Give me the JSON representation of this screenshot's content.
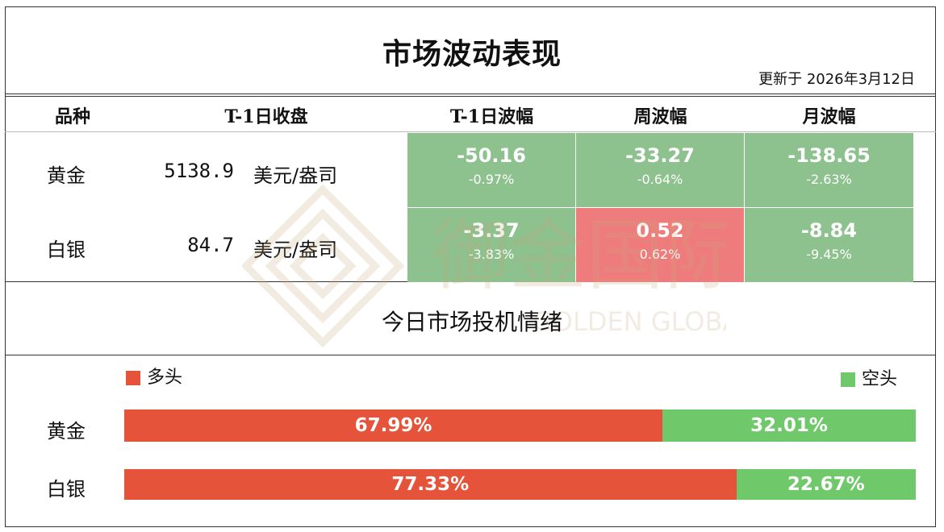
{
  "title": "市场波动表现",
  "updated": "更新于 2026年3月12日",
  "headers": {
    "variety": "品种",
    "close": "T-1日收盘",
    "day": "T-1日波幅",
    "week": "周波幅",
    "month": "月波幅"
  },
  "rows": [
    {
      "name": "黄金",
      "close": "5138.9",
      "unit": "美元/盎司",
      "day": {
        "value": "-50.16",
        "pct": "-0.97%"
      },
      "week": {
        "value": "-33.27",
        "pct": "-0.64%"
      },
      "month": {
        "value": "-138.65",
        "pct": "-2.63%"
      }
    },
    {
      "name": "白银",
      "close": "84.7",
      "unit": "美元/盎司",
      "day": {
        "value": "-3.37",
        "pct": "-3.83%"
      },
      "week": {
        "value": "0.52",
        "pct": "0.62%"
      },
      "month": {
        "value": "-8.84",
        "pct": "-9.45%"
      }
    }
  ],
  "sentiment": {
    "title": "今日市场投机情绪",
    "long_label": "多头",
    "short_label": "空头",
    "long_color": "#e4533a",
    "short_color": "#6fc86a",
    "items": [
      {
        "name": "黄金",
        "long": "67.99%",
        "short": "32.01%",
        "long_fraction": 0.6799
      },
      {
        "name": "白银",
        "long": "77.33%",
        "short": "22.67%",
        "long_fraction": 0.7733
      }
    ]
  },
  "watermark": {
    "cn": "御金国际",
    "en": "GOLDEN GLOBAL"
  }
}
